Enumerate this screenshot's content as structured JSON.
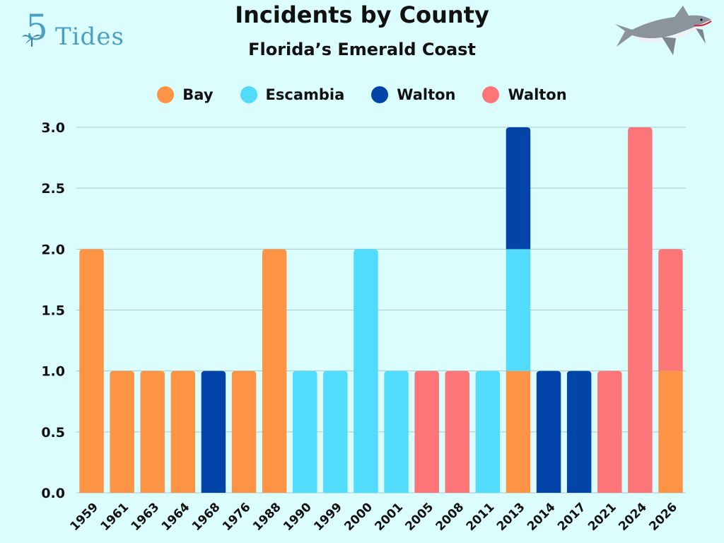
{
  "chart_data": {
    "type": "bar",
    "stacked": true,
    "title": "Incidents by County",
    "subtitle": "Florida’s Emerald Coast",
    "categories": [
      "1959",
      "1961",
      "1963",
      "1964",
      "1968",
      "1976",
      "1988",
      "1990",
      "1999",
      "2000",
      "2001",
      "2005",
      "2008",
      "2011",
      "2013",
      "2014",
      "2017",
      "2021",
      "2024",
      "2026"
    ],
    "series": [
      {
        "name": "Bay",
        "color": "#fd9445",
        "values": [
          2,
          1,
          1,
          1,
          0,
          1,
          2,
          0,
          0,
          0,
          0,
          0,
          0,
          0,
          1,
          0,
          0,
          0,
          0,
          1
        ]
      },
      {
        "name": "Escambia",
        "color": "#52dcfc",
        "values": [
          0,
          0,
          0,
          0,
          0,
          0,
          0,
          1,
          1,
          2,
          1,
          0,
          0,
          1,
          1,
          0,
          0,
          0,
          0,
          0
        ]
      },
      {
        "name": "Walton",
        "color": "#0244a7",
        "values": [
          0,
          0,
          0,
          0,
          1,
          0,
          0,
          0,
          0,
          0,
          0,
          0,
          0,
          0,
          1,
          1,
          1,
          0,
          0,
          0
        ]
      },
      {
        "name": "Walton",
        "color": "#fd7677",
        "values": [
          0,
          0,
          0,
          0,
          0,
          0,
          0,
          0,
          0,
          0,
          0,
          1,
          1,
          0,
          0,
          0,
          0,
          1,
          3,
          1
        ]
      }
    ],
    "yticks": [
      "0.0",
      "0.5",
      "1.0",
      "1.5",
      "2.0",
      "2.5",
      "3.0"
    ],
    "ylim": [
      0,
      3
    ],
    "grid": true,
    "legend": "top"
  },
  "branding": {
    "logo_number": "5",
    "logo_text": "Tides",
    "shark_icon": "shark-icon"
  }
}
